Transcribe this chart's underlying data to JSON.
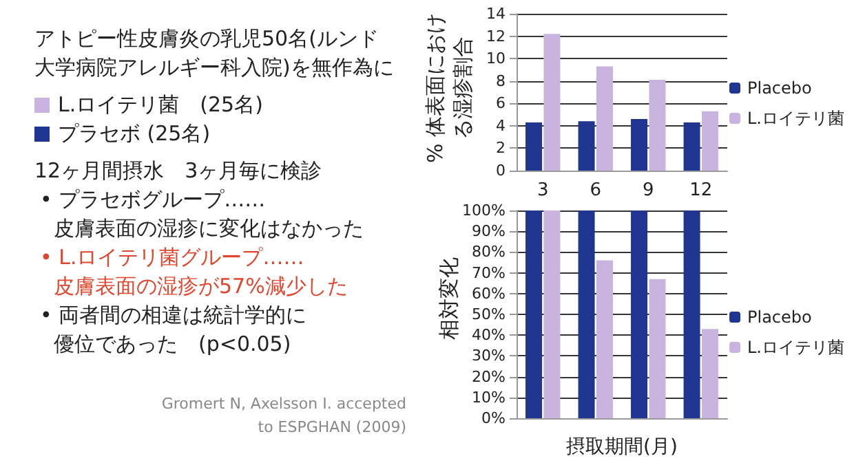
{
  "chart_data": [
    {
      "type": "other",
      "annotations": [
        "アトピー性皮膚炎の乳児50名(ルンド",
        "大学病院アレルギー科入院)を無作為に",
        "L.ロイテリ菌　(25名)",
        "プラセボ (25名)",
        "12ヶ月間摂水　3ヶ月毎に検診",
        "• プラセボグループ……",
        "皮膚表面の湿疹に変化はなかった",
        "• L.ロイテリ菌グループ……",
        "皮膚表面の湿疹が57%減少した",
        "• 両者間の相違は統計学的に",
        "優位であった　(p<0.05)",
        "Gromert N, Axelsson I. accepted",
        "to ESPGHAN (2009)"
      ]
    },
    {
      "type": "bar",
      "ylabel": "% 体表面における湿疹割合",
      "categories": [
        "3",
        "6",
        "9",
        "12"
      ],
      "series": [
        {
          "name": "Placebo",
          "color": "#1f3590",
          "values": [
            4.3,
            4.4,
            4.6,
            4.3
          ]
        },
        {
          "name": "L.ロイテリ菌",
          "color": "#c8b4de",
          "values": [
            12.2,
            9.3,
            8.1,
            5.3
          ]
        }
      ],
      "ylim": [
        0,
        14
      ],
      "yticks": [
        0,
        2,
        4,
        6,
        8,
        10,
        12,
        14
      ],
      "grid": "y",
      "legend": "right"
    },
    {
      "type": "bar",
      "ylabel": "相対変化",
      "xlabel": "摂取期間(月)",
      "categories": [
        null,
        null,
        null,
        null
      ],
      "series": [
        {
          "name": "Placebo",
          "color": "#1f3590",
          "values": [
            100,
            100,
            100,
            100
          ]
        },
        {
          "name": "L.ロイテリ菌",
          "color": "#c8b4de",
          "values": [
            100,
            76,
            67,
            43
          ]
        }
      ],
      "ylim": [
        0,
        100
      ],
      "yticks": [
        {
          "value": 0,
          "label": "0%"
        },
        {
          "value": 10,
          "label": "10%"
        },
        {
          "value": 20,
          "label": "20%"
        },
        {
          "value": 30,
          "label": "30%"
        },
        {
          "value": 40,
          "label": "40%"
        },
        {
          "value": 50,
          "label": "50%"
        },
        {
          "value": 60,
          "label": "60%"
        },
        {
          "value": 70,
          "label": "70%"
        },
        {
          "value": 80,
          "label": "80%"
        },
        {
          "value": 90,
          "label": "90%"
        },
        {
          "value": 100,
          "label": "100%"
        }
      ],
      "grid": "y",
      "legend": "right"
    }
  ]
}
